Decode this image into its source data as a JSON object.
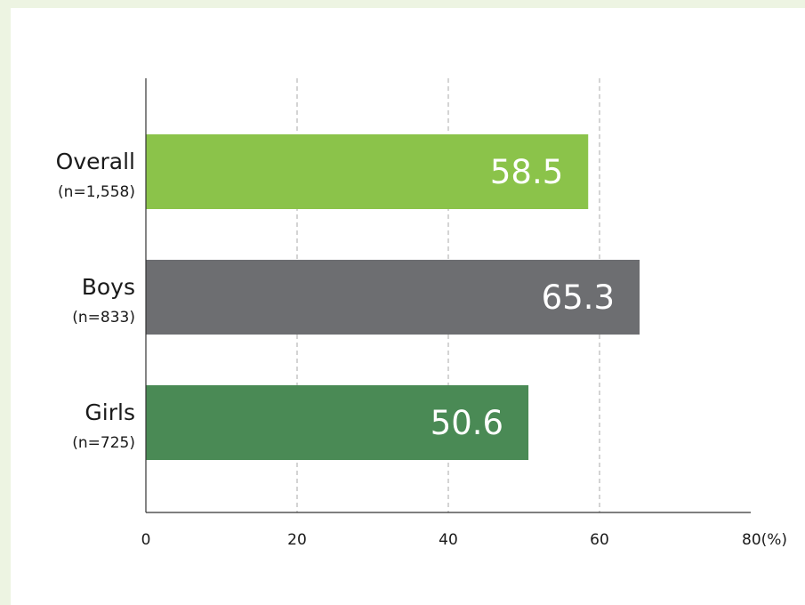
{
  "chart_data": {
    "type": "bar",
    "orientation": "horizontal",
    "categories": [
      {
        "name": "Overall",
        "n_label": "(n=1,558)"
      },
      {
        "name": "Boys",
        "n_label": "(n=833)"
      },
      {
        "name": "Girls",
        "n_label": "(n=725)"
      }
    ],
    "values": [
      58.5,
      65.3,
      50.6
    ],
    "value_labels": [
      "58.5",
      "65.3",
      "50.6"
    ],
    "bar_colors": [
      "#8bc34a",
      "#6d6e71",
      "#4a8a55"
    ],
    "xlim": [
      0,
      80
    ],
    "x_ticks": [
      0,
      20,
      40,
      60,
      80
    ],
    "x_tick_labels": [
      "0",
      "20",
      "40",
      "60",
      "80(%)"
    ],
    "grid": "vertical dashed",
    "grid_color": "#aaaaaa",
    "axis_color": "#333333",
    "title": "",
    "xlabel": "",
    "ylabel": ""
  },
  "page": {
    "background": "#edf4e2",
    "panel": "#ffffff"
  }
}
